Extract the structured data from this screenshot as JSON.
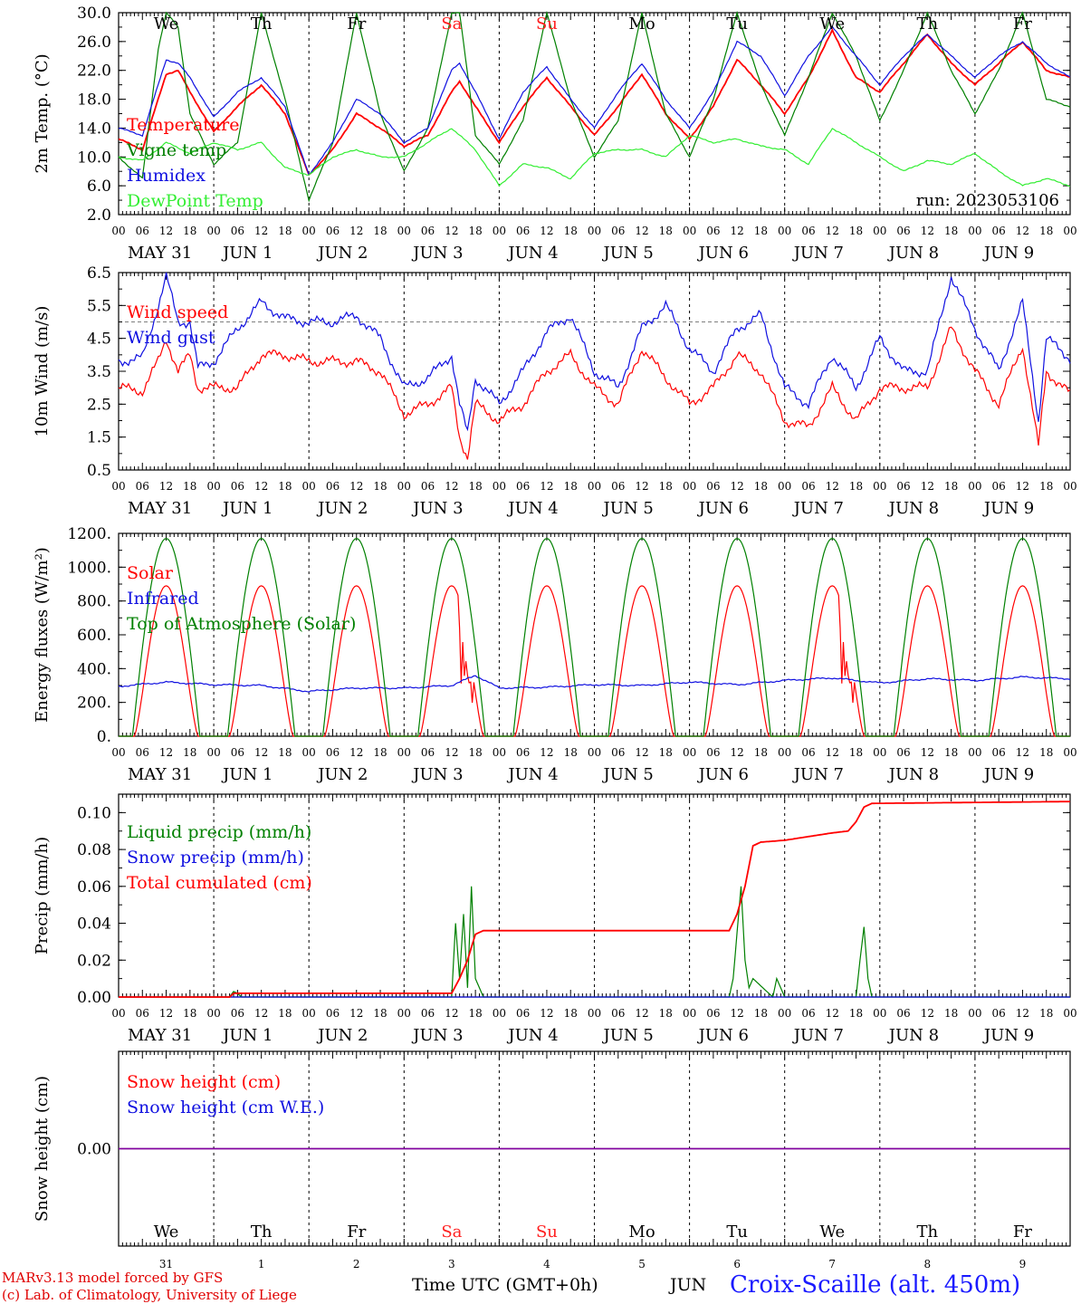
{
  "colors": {
    "red": "#ff0000",
    "green_dark": "#008000",
    "green_light": "#33ee33",
    "blue": "#1010e0",
    "purple": "#8000a0",
    "weekday": "#000000",
    "weekend": "#ff2020"
  },
  "run_label": "run: 2023053106",
  "hour_labels": [
    "00",
    "06",
    "12",
    "18"
  ],
  "last_hour_label": "00",
  "date_labels": [
    "MAY 31",
    "JUN  1",
    "JUN  2",
    "JUN  3",
    "JUN  4",
    "JUN  5",
    "JUN  6",
    "JUN  7",
    "JUN  8",
    "JUN  9"
  ],
  "weekdays": [
    {
      "label": "We",
      "weekend": false
    },
    {
      "label": "Th",
      "weekend": false
    },
    {
      "label": "Fr",
      "weekend": false
    },
    {
      "label": "Sa",
      "weekend": true
    },
    {
      "label": "Su",
      "weekend": true
    },
    {
      "label": "Mo",
      "weekend": false
    },
    {
      "label": "Tu",
      "weekend": false
    },
    {
      "label": "We",
      "weekend": false
    },
    {
      "label": "Th",
      "weekend": false
    },
    {
      "label": "Fr",
      "weekend": false
    }
  ],
  "day_numbers": [
    "31",
    "1",
    "2",
    "3",
    "4",
    "5",
    "6",
    "7",
    "8",
    "9"
  ],
  "bottom_month": "JUN",
  "x_axis_title": "Time UTC (GMT+0h)",
  "footer": {
    "line1": "MARv3.13 model forced by GFS",
    "line2": "(c) Lab. of Climatology, University of Liege",
    "station": "Croix-Scaille (alt. 450m)"
  },
  "chart_data": [
    {
      "type": "line",
      "ylabel": "2m Temp. (°C)",
      "ylim": [
        2,
        30
      ],
      "ytick_labels": [
        "2.0",
        "6.0",
        "10.0",
        "14.0",
        "18.0",
        "22.0",
        "26.0",
        "30.0"
      ],
      "yticks": [
        2,
        6,
        10,
        14,
        18,
        22,
        26,
        30
      ],
      "x_unit": "hours since 2023-05-31 00 UTC",
      "xlim": [
        0,
        240
      ],
      "series": [
        {
          "name": "Temperature",
          "color": "red",
          "x": [
            0,
            6,
            12,
            15,
            18,
            24,
            30,
            36,
            42,
            48,
            54,
            60,
            66,
            72,
            78,
            84,
            86,
            90,
            96,
            102,
            108,
            114,
            120,
            126,
            132,
            138,
            144,
            150,
            156,
            162,
            168,
            174,
            180,
            186,
            192,
            198,
            204,
            210,
            216,
            222,
            228,
            234,
            240
          ],
          "y": [
            12.5,
            11,
            21.5,
            22,
            19,
            13.5,
            17,
            20,
            16,
            7.5,
            11,
            16,
            14,
            11.5,
            13,
            19,
            20.5,
            17,
            12,
            17,
            21,
            17,
            13,
            17,
            21.5,
            16,
            12.5,
            17,
            23.5,
            20,
            16,
            21,
            27.5,
            21,
            19,
            23,
            27,
            23,
            20,
            23,
            26,
            22,
            21
          ]
        },
        {
          "name": "Vigne temp",
          "color": "green_dark",
          "x": [
            0,
            6,
            10,
            12,
            15,
            18,
            24,
            30,
            36,
            42,
            48,
            54,
            60,
            66,
            72,
            78,
            84,
            86,
            90,
            96,
            102,
            108,
            114,
            120,
            126,
            132,
            138,
            144,
            150,
            156,
            162,
            168,
            174,
            180,
            186,
            192,
            198,
            204,
            210,
            216,
            222,
            228,
            234,
            240
          ],
          "y": [
            10,
            7,
            25,
            30,
            28,
            16,
            9,
            12,
            30,
            18,
            4,
            12,
            30,
            16,
            8,
            14,
            30,
            30,
            13,
            9,
            15,
            30,
            18,
            10,
            15,
            30,
            16,
            10,
            18,
            30,
            20,
            13,
            21,
            30,
            24,
            15,
            22,
            30,
            22,
            16,
            22,
            30,
            18,
            17
          ]
        },
        {
          "name": "Humidex",
          "color": "blue",
          "x": [
            0,
            6,
            12,
            15,
            18,
            24,
            30,
            36,
            42,
            48,
            54,
            60,
            66,
            72,
            78,
            84,
            86,
            90,
            96,
            102,
            108,
            114,
            120,
            126,
            132,
            138,
            144,
            150,
            156,
            162,
            168,
            174,
            180,
            186,
            192,
            198,
            204,
            210,
            216,
            222,
            228,
            234,
            240
          ],
          "y": [
            14,
            13,
            23.5,
            23,
            21,
            15.5,
            19,
            21,
            17,
            7.5,
            12,
            18,
            16,
            12,
            14,
            22,
            23,
            19,
            12.5,
            19,
            22.5,
            18,
            14,
            19,
            23,
            18,
            14,
            19,
            26,
            24,
            18.5,
            24,
            28,
            24,
            20,
            24,
            27,
            24,
            21,
            24,
            26,
            23,
            21
          ]
        },
        {
          "name": "DewPoint Temp",
          "color": "green_light",
          "x": [
            0,
            6,
            12,
            18,
            24,
            30,
            36,
            42,
            48,
            54,
            60,
            66,
            72,
            78,
            84,
            90,
            96,
            102,
            108,
            114,
            120,
            126,
            132,
            138,
            144,
            150,
            156,
            162,
            168,
            174,
            180,
            186,
            192,
            198,
            204,
            210,
            216,
            222,
            228,
            234,
            240
          ],
          "y": [
            10,
            9.5,
            12,
            10.5,
            12,
            11,
            12,
            8.5,
            7.5,
            10,
            11,
            10,
            10,
            12,
            14,
            11,
            6,
            9,
            8.5,
            7,
            10.5,
            11,
            11,
            10,
            13,
            12,
            12.5,
            11.5,
            11,
            9,
            14,
            12,
            10,
            8,
            9.5,
            9,
            10.5,
            8,
            6,
            7,
            6
          ]
        }
      ],
      "legend": [
        "Temperature",
        "Vigne temp",
        "Humidex",
        "DewPoint Temp"
      ],
      "legend_placement": "left"
    },
    {
      "type": "line",
      "ylabel": "10m Wind (m/s)",
      "ylim": [
        0.5,
        6.5
      ],
      "ytick_labels": [
        "0.5",
        "1.5",
        "2.5",
        "3.5",
        "4.5",
        "5.5",
        "6.5"
      ],
      "yticks": [
        0.5,
        1.5,
        2.5,
        3.5,
        4.5,
        5.5,
        6.5
      ],
      "hline": 5,
      "xlim": [
        0,
        240
      ],
      "series": [
        {
          "name": "Wind speed",
          "color": "red",
          "x": [
            0,
            6,
            10,
            12,
            15,
            18,
            20,
            24,
            30,
            36,
            42,
            48,
            54,
            60,
            66,
            72,
            78,
            84,
            86,
            88,
            90,
            96,
            102,
            108,
            114,
            120,
            126,
            132,
            138,
            144,
            150,
            156,
            162,
            168,
            174,
            180,
            186,
            192,
            198,
            204,
            210,
            216,
            222,
            228,
            232,
            234,
            240
          ],
          "y": [
            3,
            2.9,
            3.8,
            4.5,
            3.5,
            4,
            3,
            3,
            3,
            4,
            4,
            3.8,
            3.8,
            3.8,
            3.5,
            2.2,
            2.5,
            3,
            1.5,
            0.9,
            2.5,
            2,
            2.5,
            3.5,
            4,
            3,
            2.5,
            4.2,
            3.3,
            2.5,
            3,
            4,
            3.5,
            2,
            1.8,
            3,
            2,
            3,
            3,
            3,
            4.8,
            3.5,
            2.5,
            4.3,
            1.2,
            3.5,
            2.8
          ]
        },
        {
          "name": "Wind gust",
          "color": "blue",
          "x": [
            0,
            6,
            10,
            12,
            15,
            18,
            20,
            24,
            30,
            36,
            42,
            48,
            54,
            60,
            66,
            72,
            78,
            84,
            86,
            88,
            90,
            96,
            102,
            108,
            114,
            120,
            126,
            132,
            138,
            144,
            150,
            156,
            162,
            168,
            174,
            180,
            186,
            192,
            198,
            204,
            210,
            216,
            222,
            228,
            232,
            234,
            240
          ],
          "y": [
            3.8,
            3.9,
            5.5,
            6.4,
            5,
            5,
            3.6,
            3.8,
            4.8,
            5.6,
            5.1,
            5,
            5,
            5.2,
            4.5,
            3,
            3.3,
            4,
            2.5,
            1.6,
            3.3,
            2.5,
            3.5,
            4.7,
            5.2,
            3.5,
            3,
            4.8,
            5.5,
            4.2,
            3.5,
            4.8,
            5.2,
            3,
            2.5,
            4,
            3,
            4.5,
            3.5,
            3.5,
            6.4,
            4.8,
            3.5,
            5.6,
            2,
            4.5,
            3.9
          ]
        }
      ],
      "legend": [
        "Wind speed",
        "Wind gust"
      ],
      "legend_placement": "left"
    },
    {
      "type": "line",
      "ylabel": "Energy fluxes (W/m²)",
      "ylim": [
        0,
        1200
      ],
      "ytick_labels": [
        "0.",
        "200.",
        "400.",
        "600.",
        "800.",
        "1000.",
        "1200."
      ],
      "yticks": [
        0,
        200,
        400,
        600,
        800,
        1000,
        1200
      ],
      "xlim": [
        0,
        240
      ],
      "series": [
        {
          "name": "Solar",
          "color": "red",
          "model": "daily_arch",
          "sunrise_h": 4,
          "sunset_h": 20,
          "peak": 890
        },
        {
          "name": "Infrared",
          "color": "blue",
          "x": [
            0,
            12,
            24,
            36,
            48,
            60,
            72,
            84,
            90,
            96,
            108,
            120,
            132,
            144,
            156,
            168,
            180,
            192,
            204,
            216,
            228,
            240
          ],
          "y": [
            295,
            320,
            305,
            300,
            265,
            285,
            285,
            300,
            360,
            285,
            290,
            305,
            300,
            320,
            305,
            330,
            345,
            315,
            340,
            330,
            350,
            340
          ]
        },
        {
          "name": "Top of Atmosphere (Solar)",
          "color": "green_dark",
          "model": "daily_arch",
          "sunrise_h": 3.5,
          "sunset_h": 20.5,
          "peak": 1170
        }
      ],
      "legend": [
        "Solar",
        "Infrared",
        "Top of Atmosphere (Solar)"
      ],
      "legend_placement": "left"
    },
    {
      "type": "line",
      "ylabel": "Precip (mm/h)",
      "ylim": [
        0,
        0.11
      ],
      "ytick_labels": [
        "0.00",
        "0.02",
        "0.04",
        "0.06",
        "0.08",
        "0.10"
      ],
      "yticks": [
        0,
        0.02,
        0.04,
        0.06,
        0.08,
        0.1
      ],
      "xlim": [
        0,
        240
      ],
      "series": [
        {
          "name": "Liquid precip (mm/h)",
          "color": "green_dark",
          "x": [
            0,
            28,
            29,
            30,
            31,
            84,
            85,
            86,
            87,
            88,
            89,
            90,
            91,
            92,
            154,
            155,
            156,
            157,
            158,
            159,
            160,
            165,
            166,
            167,
            168,
            186,
            187,
            188,
            189,
            190,
            240
          ],
          "y": [
            0,
            0,
            0.003,
            0.002,
            0,
            0,
            0.04,
            0.01,
            0.045,
            0.005,
            0.06,
            0.01,
            0.005,
            0,
            0,
            0.01,
            0.035,
            0.06,
            0.02,
            0.005,
            0.01,
            0,
            0.01,
            0.005,
            0,
            0,
            0.02,
            0.038,
            0.01,
            0,
            0
          ]
        },
        {
          "name": "Snow precip (mm/h)",
          "color": "blue",
          "x": [
            0,
            240
          ],
          "y": [
            0,
            0
          ]
        },
        {
          "name": "Total cumulated (cm)",
          "color": "red",
          "x": [
            0,
            28,
            29,
            84,
            86,
            88,
            90,
            92,
            154,
            156,
            158,
            160,
            162,
            168,
            180,
            184,
            186,
            188,
            190,
            240
          ],
          "y": [
            0,
            0,
            0.002,
            0.002,
            0.01,
            0.02,
            0.034,
            0.036,
            0.036,
            0.045,
            0.06,
            0.082,
            0.084,
            0.085,
            0.089,
            0.09,
            0.095,
            0.103,
            0.105,
            0.106
          ]
        }
      ],
      "legend": [
        "Liquid precip (mm/h)",
        "Snow precip (mm/h)",
        "Total cumulated (cm)"
      ],
      "legend_placement": "left"
    },
    {
      "type": "line",
      "ylabel": "Snow height (cm)",
      "ylim": [
        -1,
        1
      ],
      "ytick_labels": [
        "0.00"
      ],
      "yticks": [
        0
      ],
      "xlim": [
        0,
        240
      ],
      "series": [
        {
          "name": "Snow height (cm)",
          "color": "red",
          "x": [
            0,
            240
          ],
          "y": [
            0,
            0
          ]
        },
        {
          "name": "Snow height (cm W.E.)",
          "color": "blue",
          "x": [
            0,
            240
          ],
          "y": [
            0,
            0
          ]
        }
      ],
      "legend": [
        "Snow height (cm)",
        "Snow height (cm W.E.)"
      ],
      "legend_placement": "left"
    }
  ]
}
